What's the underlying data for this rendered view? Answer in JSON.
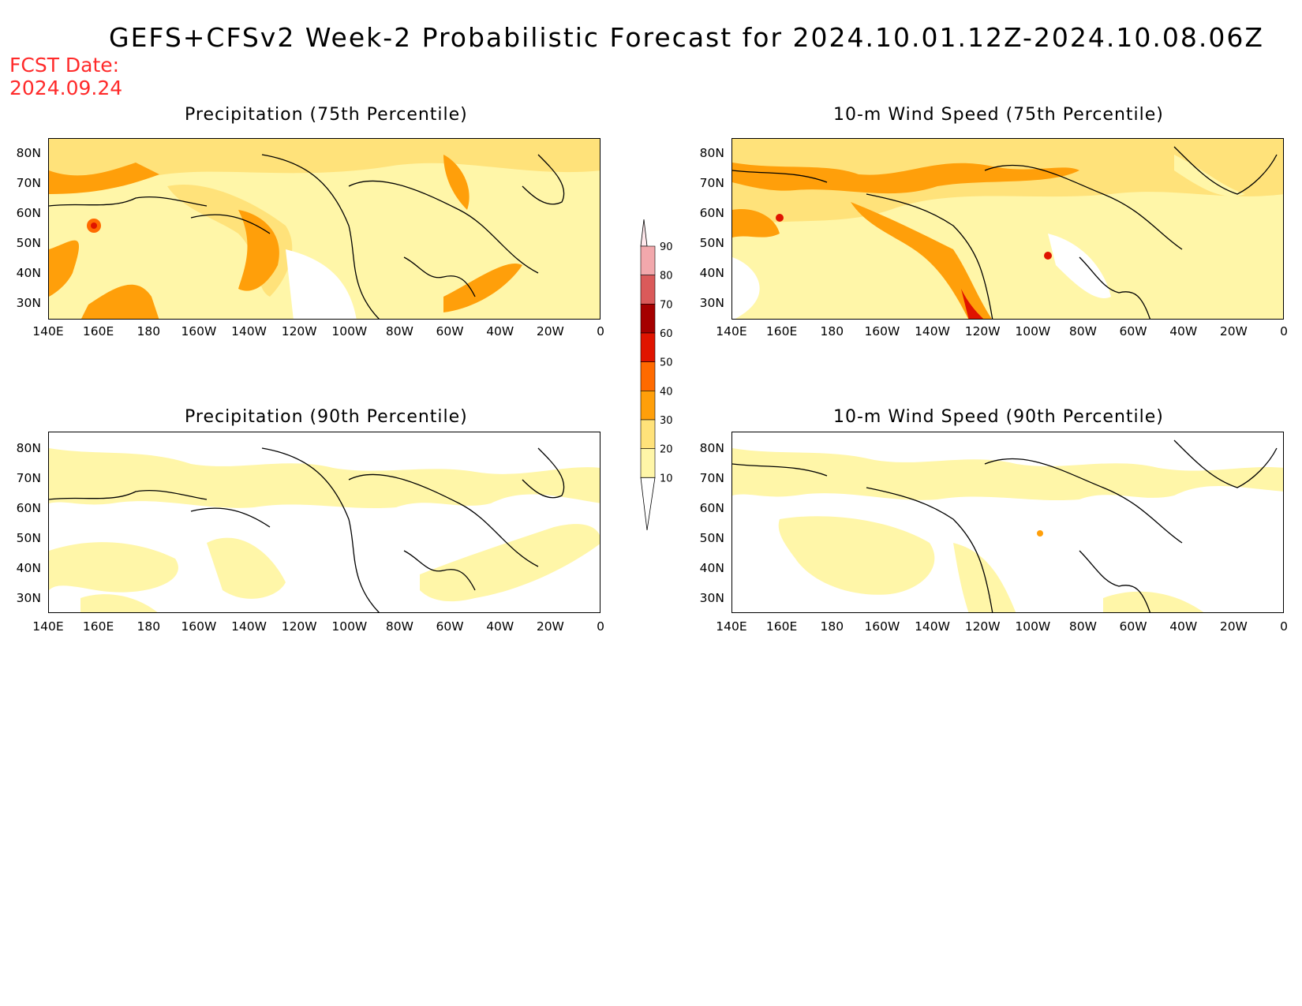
{
  "header": {
    "title": "GEFS+CFSv2 Week-2 Probabilistic Forecast for 2024.10.01.12Z-2024.10.08.06Z",
    "fcst_label": "FCST Date:",
    "fcst_date": "2024.09.24"
  },
  "axes": {
    "lat_ticks": [
      "80N",
      "70N",
      "60N",
      "50N",
      "40N",
      "30N"
    ],
    "lon_ticks": [
      "140E",
      "160E",
      "180",
      "160W",
      "140W",
      "120W",
      "100W",
      "80W",
      "60W",
      "40W",
      "20W",
      "0"
    ]
  },
  "panels": [
    {
      "title": "Precipitation (75th Percentile)"
    },
    {
      "title": "10-m Wind Speed (75th Percentile)"
    },
    {
      "title": "Precipitation (90th Percentile)"
    },
    {
      "title": "10-m Wind Speed (90th Percentile)"
    }
  ],
  "colorbar": {
    "levels": [
      "10",
      "20",
      "30",
      "40",
      "50",
      "60",
      "70",
      "80",
      "90"
    ],
    "colors": [
      "#ffffff",
      "#fff6a8",
      "#ffe27a",
      "#ff9f0a",
      "#ff6a00",
      "#e01400",
      "#a50000",
      "#da5a5a",
      "#f2a8ac",
      "#ffe8ec"
    ]
  }
}
